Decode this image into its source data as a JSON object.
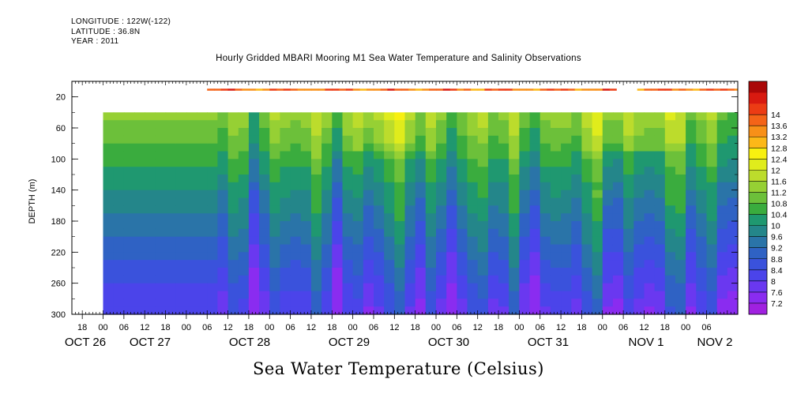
{
  "meta": {
    "longitude": "LONGITUDE : 122W(-122)",
    "latitude": "LATITUDE : 36.8N",
    "year": "YEAR : 2011"
  },
  "chart_data": {
    "type": "heatmap",
    "title": "Hourly Gridded MBARI Mooring M1 Sea Water Temperature and Salinity Observations",
    "xlabel": "Sea Water Temperature (Celsius)",
    "ylabel": "DEPTH (m)",
    "x_hour_ticks": [
      "18",
      "00",
      "06",
      "12",
      "18",
      "00",
      "06",
      "12",
      "18",
      "00",
      "06",
      "12",
      "18",
      "00",
      "06",
      "12",
      "18",
      "00",
      "06",
      "12",
      "18",
      "00",
      "06",
      "12",
      "18",
      "00",
      "06",
      "12",
      "18",
      "00",
      "06"
    ],
    "x_day_labels": [
      "OCT 26",
      "OCT 27",
      "OCT 28",
      "OCT 29",
      "OCT 30",
      "OCT 31",
      "NOV  1",
      "NOV  2"
    ],
    "y_ticks": [
      20,
      60,
      100,
      140,
      180,
      220,
      260,
      300
    ],
    "ylim": [
      300,
      0
    ],
    "xlim_hours": [
      -9,
      183
    ],
    "colorbar_levels": [
      7.2,
      7.6,
      8,
      8.4,
      8.8,
      9.2,
      9.6,
      10,
      10.4,
      10.8,
      11.2,
      11.6,
      12,
      12.4,
      12.8,
      13.2,
      13.6,
      14
    ],
    "colorbar_colors": [
      "#a021e0",
      "#8a2cf0",
      "#6a38f0",
      "#4b44ea",
      "#3a52dc",
      "#2f62c4",
      "#2a74a8",
      "#24868a",
      "#1f9870",
      "#3aac3e",
      "#6cc03a",
      "#96d034",
      "#bcdc2c",
      "#e0ec1c",
      "#f8f010",
      "#fcb818",
      "#f89018",
      "#f46418",
      "#ec3c14",
      "#d81a10",
      "#aa0808"
    ],
    "surface_bar_depth": 10,
    "surface_gap_hours": [
      [
        147,
        153
      ]
    ],
    "profile_start_hour": 0,
    "profile_top_depth": 40,
    "surface_start_hour": 30,
    "note_data": "temperature field depth vs time: warm ~11-12 C near 40-60 m, cold ~7.4-7.8 C near 280-300 m"
  }
}
